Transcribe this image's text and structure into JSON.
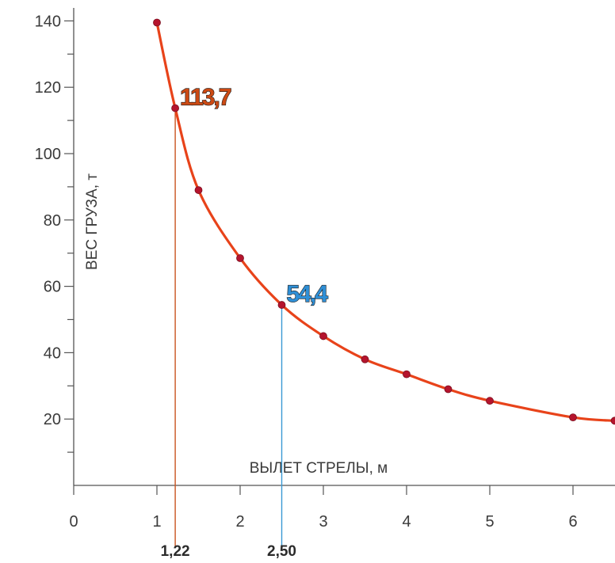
{
  "chart_data": {
    "type": "line",
    "xlabel": "ВЫЛЕТ СТРЕЛЫ, м",
    "ylabel": "ВЕС ГРУЗА, т",
    "xlim": [
      0,
      6.5
    ],
    "ylim": [
      0,
      140
    ],
    "x_ticks": [
      0,
      1,
      2,
      3,
      4,
      5,
      6
    ],
    "x_tick_labels": [
      "0",
      "1",
      "2",
      "3",
      "4",
      "5",
      "6"
    ],
    "y_ticks": [
      20,
      40,
      60,
      80,
      100,
      120,
      140
    ],
    "y_tick_labels": [
      "20",
      "40",
      "60",
      "80",
      "100",
      "120",
      "140"
    ],
    "grid": false,
    "series": [
      {
        "x": [
          1.0,
          1.22,
          1.5,
          2.0,
          2.5,
          3.0,
          3.5,
          4.0,
          4.5,
          5.0,
          6.0,
          6.5
        ],
        "y": [
          139.5,
          113.7,
          89.0,
          68.5,
          54.4,
          45.0,
          38.0,
          33.5,
          29.0,
          25.5,
          20.5,
          19.5
        ],
        "color": "#e8431a",
        "marker_color": "#b5142d"
      }
    ],
    "markers": [
      {
        "x": 1.22,
        "y": 113.7,
        "x_label": "1,22",
        "value_label": "113,7",
        "color": "#c9541f",
        "label_color": "#cc4a14"
      },
      {
        "x": 2.5,
        "y": 54.4,
        "x_label": "2,50",
        "value_label": "54,4",
        "color": "#3a9ad4",
        "label_color": "#2f8fd6"
      }
    ]
  }
}
